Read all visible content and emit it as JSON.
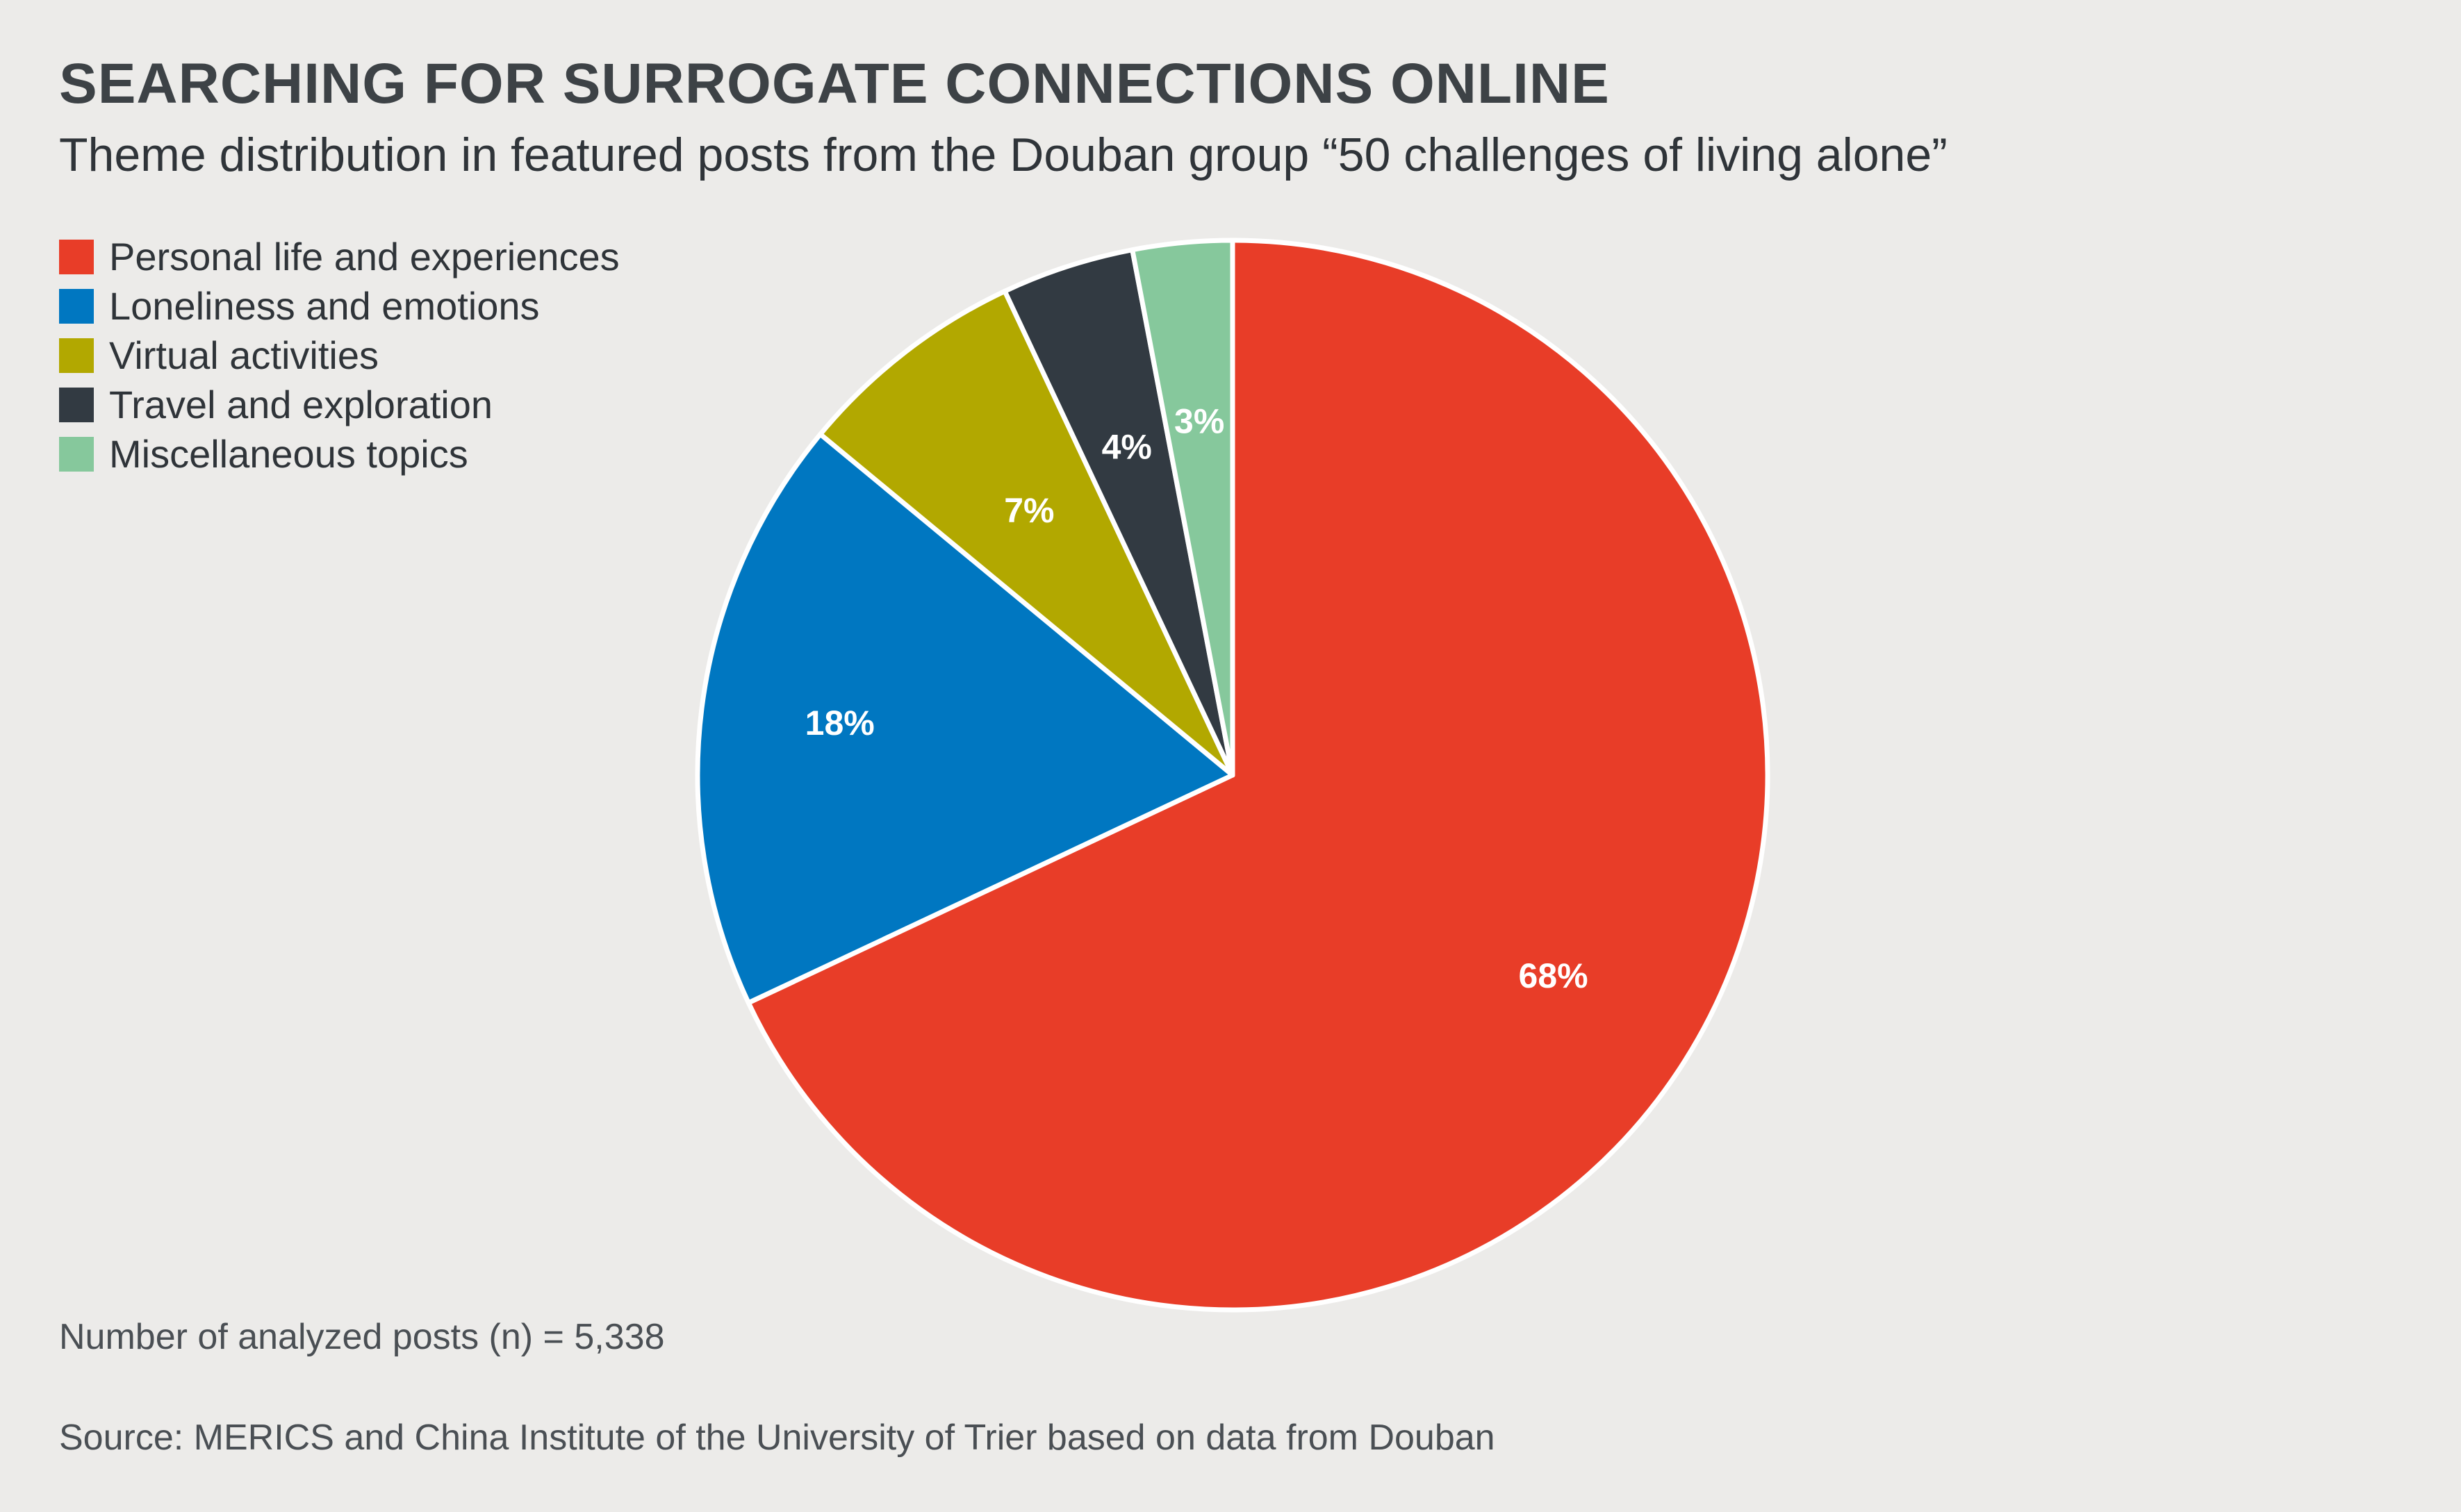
{
  "header": {
    "title": "SEARCHING FOR SURROGATE CONNECTIONS ONLINE",
    "subtitle": "Theme distribution in featured posts from the Douban group “50 challenges of living alone”"
  },
  "legend": {
    "items": [
      {
        "label": "Personal life and experiences",
        "color": "#e83d28"
      },
      {
        "label": "Loneliness and emotions",
        "color": "#0077c1"
      },
      {
        "label": "Virtual activities",
        "color": "#b2a800"
      },
      {
        "label": "Travel and exploration",
        "color": "#323a42"
      },
      {
        "label": "Miscellaneous topics",
        "color": "#86c89c"
      }
    ]
  },
  "chart_data": {
    "type": "pie",
    "title": "SEARCHING FOR SURROGATE CONNECTIONS ONLINE",
    "subtitle": "Theme distribution in featured posts from the Douban group “50 challenges of living alone”",
    "slices": [
      {
        "label": "Personal life and experiences",
        "value": 68,
        "display": "68%",
        "color": "#e83d28"
      },
      {
        "label": "Loneliness and emotions",
        "value": 18,
        "display": "18%",
        "color": "#0077c1"
      },
      {
        "label": "Virtual activities",
        "value": 7,
        "display": "7%",
        "color": "#b2a800"
      },
      {
        "label": "Travel and exploration",
        "value": 4,
        "display": "4%",
        "color": "#323a42"
      },
      {
        "label": "Miscellaneous topics",
        "value": 3,
        "display": "3%",
        "color": "#86c89c"
      }
    ],
    "start": "12 o'clock",
    "direction": "clockwise",
    "legend_position": "top-left"
  },
  "footer": {
    "note": "Number of analyzed posts (n) = 5,338",
    "source": "Source: MERICS and China Institute of the University of Trier based on data from Douban"
  }
}
